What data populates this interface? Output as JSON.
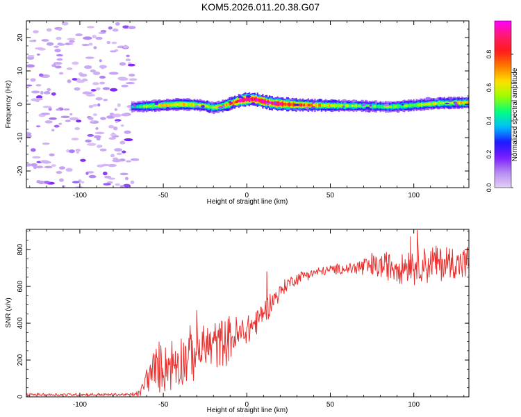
{
  "title": "KOM5.2026.011.20.38.G07",
  "colors": {
    "snr_line": "#e8312f",
    "axis": "#000000",
    "cmap": [
      "#e4d0f6",
      "#b68cf0",
      "#7a1bff",
      "#1a1aff",
      "#00bfff",
      "#00ff7f",
      "#9aff00",
      "#ffe100",
      "#ff7a00",
      "#ff1a1a",
      "#ff1a6e",
      "#ff00ff"
    ]
  },
  "chart_data": [
    {
      "type": "heatmap",
      "name": "spectrogram",
      "xlabel": "Height of straight line (km)",
      "ylabel": "Frequency (Hz)",
      "xlim": [
        -132,
        133
      ],
      "ylim": [
        -25,
        25
      ],
      "xticks": [
        -100,
        -50,
        0,
        50,
        100
      ],
      "xtick_labels": [
        "-100",
        "-50",
        "0",
        "50",
        "100"
      ],
      "yticks": [
        -20,
        -10,
        0,
        10,
        20
      ],
      "ytick_labels": [
        "-20",
        "-10",
        "0",
        "10",
        "20"
      ],
      "band_center": [
        {
          "x": -70,
          "y": -0.8
        },
        {
          "x": -60,
          "y": -0.6
        },
        {
          "x": -50,
          "y": -0.3
        },
        {
          "x": -40,
          "y": 0.0
        },
        {
          "x": -30,
          "y": -0.2
        },
        {
          "x": -25,
          "y": -0.5
        },
        {
          "x": -20,
          "y": -1.0
        },
        {
          "x": -15,
          "y": -0.6
        },
        {
          "x": -10,
          "y": 0.2
        },
        {
          "x": -5,
          "y": 1.0
        },
        {
          "x": 0,
          "y": 1.5
        },
        {
          "x": 5,
          "y": 1.5
        },
        {
          "x": 10,
          "y": 0.8
        },
        {
          "x": 15,
          "y": 0.3
        },
        {
          "x": 20,
          "y": 0.1
        },
        {
          "x": 30,
          "y": -0.2
        },
        {
          "x": 50,
          "y": -0.4
        },
        {
          "x": 70,
          "y": -0.5
        },
        {
          "x": 85,
          "y": -0.8
        },
        {
          "x": 100,
          "y": -0.3
        },
        {
          "x": 115,
          "y": 0.3
        },
        {
          "x": 133,
          "y": 0.5
        }
      ],
      "band_peak": [
        {
          "x": -70,
          "y": 0.35
        },
        {
          "x": -60,
          "y": 0.55
        },
        {
          "x": -50,
          "y": 0.6
        },
        {
          "x": -40,
          "y": 0.65
        },
        {
          "x": -30,
          "y": 0.6
        },
        {
          "x": -20,
          "y": 0.55
        },
        {
          "x": -10,
          "y": 0.75
        },
        {
          "x": -2,
          "y": 0.95
        },
        {
          "x": 5,
          "y": 0.95
        },
        {
          "x": 15,
          "y": 0.9
        },
        {
          "x": 25,
          "y": 0.85
        },
        {
          "x": 40,
          "y": 0.7
        },
        {
          "x": 60,
          "y": 0.55
        },
        {
          "x": 80,
          "y": 0.5
        },
        {
          "x": 100,
          "y": 0.55
        },
        {
          "x": 120,
          "y": 0.6
        },
        {
          "x": 133,
          "y": 0.6
        }
      ],
      "noise_region_x": [
        -132,
        -67
      ],
      "colorbar": {
        "label": "Normalized spectral amplitude",
        "range": [
          0.0,
          1.0
        ],
        "ticks": [
          0.0,
          0.2,
          0.4,
          0.6,
          0.8
        ],
        "tick_labels": [
          "0.0",
          "0.2",
          "0.4",
          "0.6",
          "0.8"
        ]
      }
    },
    {
      "type": "line",
      "name": "snr",
      "xlabel": "Height of straight line (km)",
      "ylabel": "SNR (v/v)",
      "xlim": [
        -132,
        133
      ],
      "ylim": [
        0,
        910
      ],
      "xticks": [
        -100,
        -50,
        0,
        50,
        100
      ],
      "xtick_labels": [
        "-100",
        "-50",
        "0",
        "50",
        "100"
      ],
      "yticks": [
        0,
        200,
        400,
        600,
        800
      ],
      "ytick_labels": [
        "0",
        "200",
        "400",
        "600",
        "800"
      ],
      "series": [
        {
          "name": "SNR",
          "trend": [
            {
              "x": -132,
              "y": 12
            },
            {
              "x": -70,
              "y": 12
            },
            {
              "x": -64,
              "y": 18
            },
            {
              "x": -60,
              "y": 100
            },
            {
              "x": -55,
              "y": 150
            },
            {
              "x": -45,
              "y": 180
            },
            {
              "x": -35,
              "y": 220
            },
            {
              "x": -25,
              "y": 270
            },
            {
              "x": -15,
              "y": 300
            },
            {
              "x": -5,
              "y": 330
            },
            {
              "x": 5,
              "y": 400
            },
            {
              "x": 15,
              "y": 520
            },
            {
              "x": 25,
              "y": 620
            },
            {
              "x": 35,
              "y": 665
            },
            {
              "x": 50,
              "y": 690
            },
            {
              "x": 70,
              "y": 705
            },
            {
              "x": 90,
              "y": 715
            },
            {
              "x": 110,
              "y": 725
            },
            {
              "x": 133,
              "y": 730
            }
          ],
          "noise_amp": [
            {
              "x": -132,
              "y": 8
            },
            {
              "x": -70,
              "y": 8
            },
            {
              "x": -64,
              "y": 20
            },
            {
              "x": -55,
              "y": 130
            },
            {
              "x": -40,
              "y": 150
            },
            {
              "x": -20,
              "y": 140
            },
            {
              "x": -5,
              "y": 110
            },
            {
              "x": 10,
              "y": 70
            },
            {
              "x": 25,
              "y": 35
            },
            {
              "x": 45,
              "y": 25
            },
            {
              "x": 60,
              "y": 30
            },
            {
              "x": 70,
              "y": 60
            },
            {
              "x": 90,
              "y": 90
            },
            {
              "x": 110,
              "y": 110
            },
            {
              "x": 133,
              "y": 90
            }
          ],
          "notable_points": [
            {
              "x": 102,
              "y": 905
            },
            {
              "x": 98,
              "y": 870
            },
            {
              "x": 75,
              "y": 780
            },
            {
              "x": -30,
              "y": 470
            },
            {
              "x": 12,
              "y": 680
            }
          ]
        }
      ]
    }
  ]
}
